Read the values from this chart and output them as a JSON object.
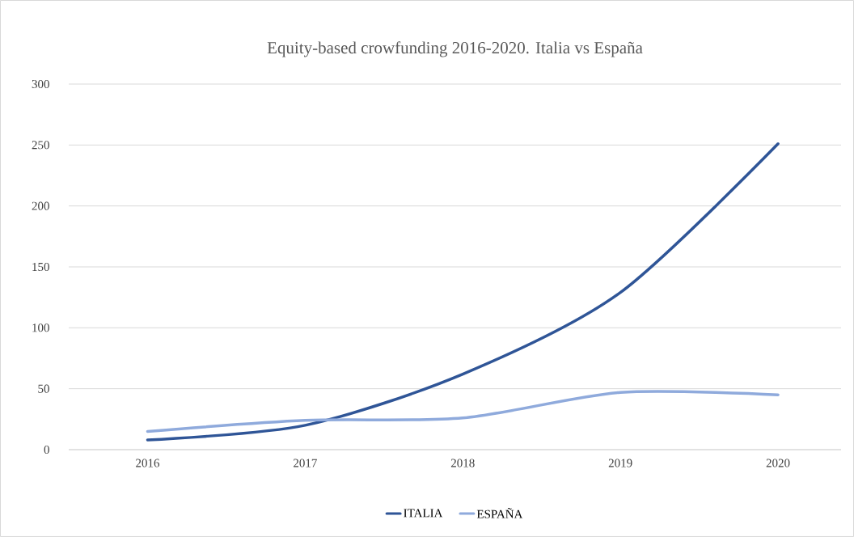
{
  "chart_data": {
    "type": "line",
    "title": "Equity-based crowfunding 2016-2020. Italia vs España",
    "categories": [
      "2016",
      "2017",
      "2018",
      "2019",
      "2020"
    ],
    "series": [
      {
        "name": "ITALIA",
        "color": "#2f5597",
        "values": [
          8,
          20,
          62,
          129,
          251
        ]
      },
      {
        "name": "ESPAÑA",
        "color": "#8faadc",
        "values": [
          15,
          24,
          26,
          47,
          45
        ]
      }
    ],
    "ylim": [
      0,
      300
    ],
    "yticks": [
      0,
      50,
      100,
      150,
      200,
      250,
      300
    ],
    "grid": "y",
    "legend": "bottom",
    "marker": "none",
    "line_style": "solid"
  }
}
